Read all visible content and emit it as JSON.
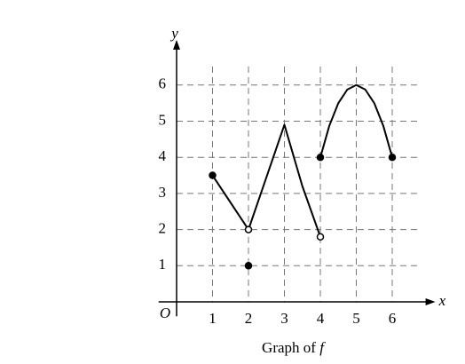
{
  "chart_data": {
    "type": "line",
    "xlabel": "x",
    "ylabel": "y",
    "origin_label": "O",
    "caption": [
      "Graph of",
      "f"
    ],
    "xlim": [
      -0.5,
      7.2
    ],
    "ylim": [
      -0.4,
      7.25
    ],
    "xticks": [
      1,
      2,
      3,
      4,
      5,
      6
    ],
    "yticks": [
      1,
      2,
      3,
      4,
      5,
      6
    ],
    "grid": true,
    "color": "#000000",
    "series": [
      {
        "x": [
          1,
          2
        ],
        "values": [
          3.5,
          2
        ]
      },
      {
        "x": [
          2,
          3,
          3.5,
          4
        ],
        "values": [
          2,
          4.9,
          3.2,
          1.8
        ]
      },
      {
        "x": [
          4,
          4.25,
          4.5,
          4.75,
          5,
          5.25,
          5.5,
          5.75,
          6
        ],
        "values": [
          4,
          4.875,
          5.5,
          5.875,
          6,
          5.875,
          5.5,
          4.875,
          4
        ]
      }
    ],
    "points": [
      {
        "x": 1,
        "y": 3.5,
        "filled": true
      },
      {
        "x": 2,
        "y": 2,
        "filled": false
      },
      {
        "x": 2,
        "y": 1,
        "filled": true
      },
      {
        "x": 4,
        "y": 1.8,
        "filled": false
      },
      {
        "x": 4,
        "y": 4,
        "filled": true
      },
      {
        "x": 6,
        "y": 4,
        "filled": true
      }
    ]
  }
}
